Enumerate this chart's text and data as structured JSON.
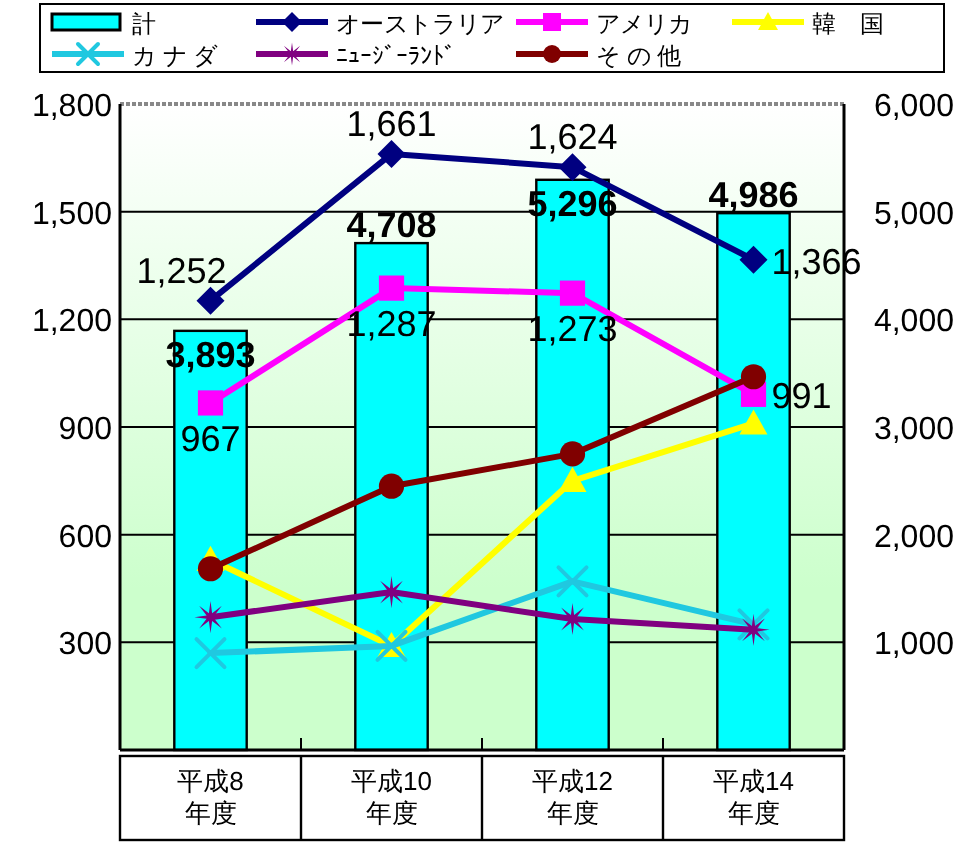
{
  "chart_data": {
    "type": "bar",
    "categories": [
      "平成8\n年度",
      "平成10\n年度",
      "平成12\n年度",
      "平成14\n年度"
    ],
    "series": [
      {
        "name": "計",
        "axis": "y2",
        "color": "#00ffff",
        "values": [
          3893,
          4708,
          5296,
          4986
        ],
        "value_labels": [
          "3,893",
          "4,708",
          "5,296",
          "4,986"
        ]
      },
      {
        "name": "オーストラリア",
        "type": "line",
        "color": "#000080",
        "marker": "diamond",
        "values": [
          1252,
          1661,
          1624,
          1366
        ],
        "value_labels": [
          "1,252",
          "1,661",
          "1,624",
          "1,366"
        ]
      },
      {
        "name": "アメリカ",
        "type": "line",
        "color": "#ff00ff",
        "marker": "square",
        "values": [
          967,
          1287,
          1273,
          991
        ],
        "value_labels": [
          "967",
          "1,287",
          "1,273",
          "991"
        ]
      },
      {
        "name": "韓　国",
        "type": "line",
        "color": "#ffff00",
        "marker": "triangle",
        "values": [
          530,
          290,
          750,
          910
        ]
      },
      {
        "name": "カ ナ ダ",
        "type": "line",
        "color": "#20c8e0",
        "marker": "cross",
        "values": [
          270,
          290,
          470,
          350
        ]
      },
      {
        "name": "ﾆｭｰｼﾞｰﾗﾝﾄﾞ",
        "type": "line",
        "color": "#800080",
        "marker": "star",
        "values": [
          370,
          440,
          365,
          335
        ]
      },
      {
        "name": "そ の 他",
        "type": "line",
        "color": "#800000",
        "marker": "circle",
        "values": [
          505,
          735,
          825,
          1040
        ]
      }
    ],
    "ylim": [
      0,
      1800
    ],
    "yticks": [
      300,
      600,
      900,
      {
        "value": 1200,
        "label": "1,200"
      },
      {
        "value": 1500,
        "label": "1,500"
      },
      {
        "value": 1800,
        "label": "1,800"
      }
    ],
    "y2lim": [
      0,
      6000
    ],
    "y2ticks": [
      {
        "value": 1000,
        "label": "1,000"
      },
      {
        "value": 2000,
        "label": "2,000"
      },
      {
        "value": 3000,
        "label": "3,000"
      },
      {
        "value": 4000,
        "label": "4,000"
      },
      {
        "value": 5000,
        "label": "5,000"
      },
      {
        "value": 6000,
        "label": "6,000"
      }
    ],
    "grid": "y",
    "legend": "top"
  }
}
